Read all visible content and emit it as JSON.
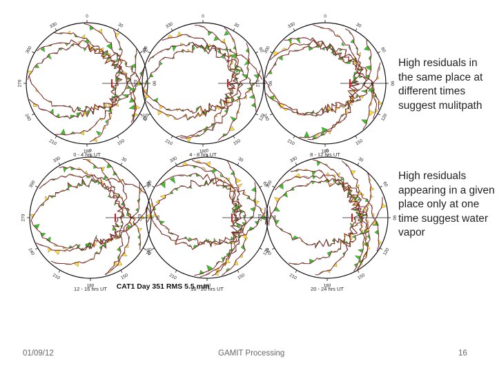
{
  "notes": {
    "multipath": "High residuals in the same place at different times suggest mulitpath",
    "water_vapor": "High residuals appearing in a given place only at one time suggest water vapor"
  },
  "footer": {
    "date": "01/09/12",
    "center": "GAMIT Processing",
    "page": "16"
  },
  "chart_data": {
    "type": "skyplot",
    "title": "CAT1 Day 351 RMS 5.5 mm",
    "azimuth_labels": [
      "0",
      "30",
      "60",
      "90",
      "120",
      "150",
      "180",
      "210",
      "240",
      "270",
      "300",
      "330"
    ],
    "panels": [
      {
        "label": "0 - 4 hrs UT"
      },
      {
        "label": "4 - 8 hrs UT"
      },
      {
        "label": "8 - 12 hrs UT"
      },
      {
        "label": "12 - 16 hrs UT"
      },
      {
        "label": "16 - 20 hrs UT"
      },
      {
        "label": "20 - 24 hrs UT"
      }
    ],
    "colors": {
      "positive": "#3fbf2a",
      "negative": "#ffe033",
      "track": "#7a2424",
      "marker": "#d21414",
      "circle": "#111111"
    }
  }
}
